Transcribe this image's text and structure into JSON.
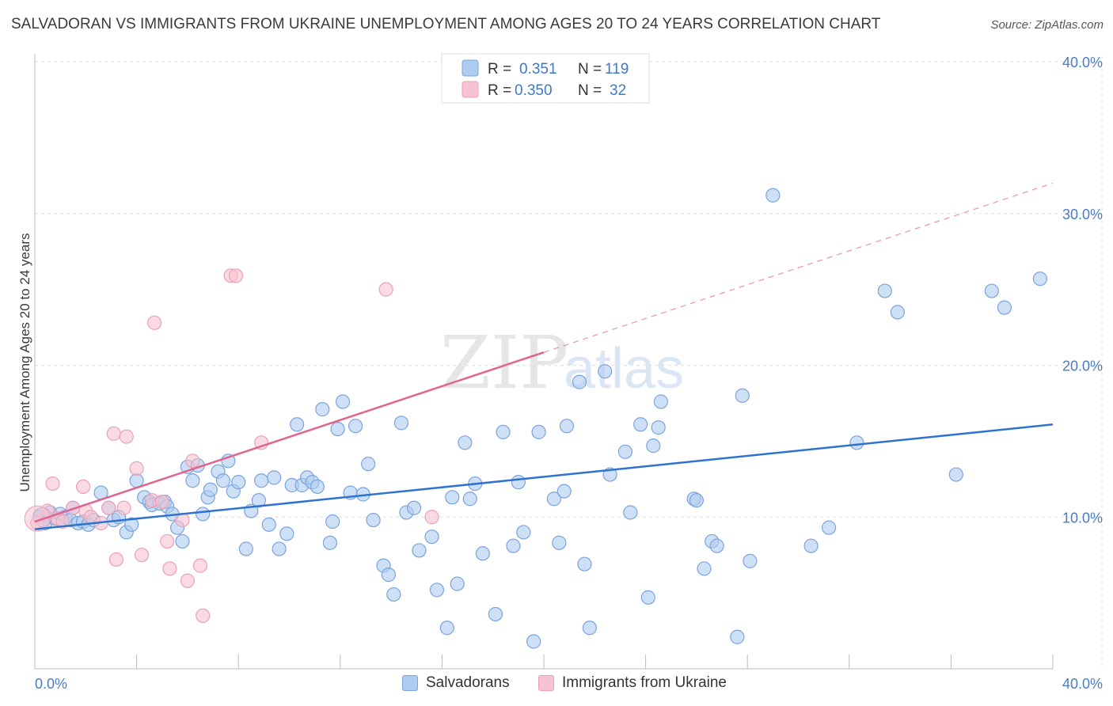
{
  "title": "SALVADORAN VS IMMIGRANTS FROM UKRAINE UNEMPLOYMENT AMONG AGES 20 TO 24 YEARS CORRELATION CHART",
  "source": "Source: ZipAtlas.com",
  "watermark": {
    "zip": "ZIP",
    "atlas": "atlas"
  },
  "legend": {
    "rows": [
      {
        "r_label": "R =",
        "r_value": "0.351",
        "n_label": "N =",
        "n_value": "119"
      },
      {
        "r_label": "R =",
        "r_value": "0.350",
        "n_label": "N =",
        "n_value": "32"
      }
    ]
  },
  "bottom_legend": [
    "Salvadorans",
    "Immigrants from Ukraine"
  ],
  "colors": {
    "blue_fill": "#aecbf0",
    "blue_stroke": "#7ba4dc",
    "blue_line": "#2f73d0",
    "pink_fill": "#f7c3d2",
    "pink_stroke": "#eba0b6",
    "pink_line": "#e0648f",
    "grid": "#e2e2e2",
    "axis_text": "#4a7cc6"
  },
  "chart_data": {
    "type": "scatter",
    "title": "SALVADORAN VS IMMIGRANTS FROM UKRAINE UNEMPLOYMENT AMONG AGES 20 TO 24 YEARS CORRELATION CHART",
    "xlabel": "",
    "ylabel": "Unemployment Among Ages 20 to 24 years",
    "xlim": [
      0,
      40
    ],
    "ylim": [
      0,
      40
    ],
    "x_tick_labels": [
      "0.0%",
      "40.0%"
    ],
    "y_ticks": [
      10,
      20,
      30,
      40
    ],
    "y_tick_labels": [
      "10.0%",
      "20.0%",
      "30.0%",
      "40.0%"
    ],
    "grid": true,
    "series": [
      {
        "name": "Salvadorans",
        "r": 0.351,
        "n": 119,
        "trend": {
          "x0": 0,
          "y0": 9.2,
          "x1": 40,
          "y1": 16.1
        },
        "points": [
          [
            0.2,
            10.0
          ],
          [
            0.4,
            9.6
          ],
          [
            0.6,
            10.3
          ],
          [
            0.8,
            9.9
          ],
          [
            1.0,
            10.2
          ],
          [
            1.2,
            10.0
          ],
          [
            1.4,
            9.8
          ],
          [
            1.5,
            10.6
          ],
          [
            1.7,
            9.6
          ],
          [
            1.9,
            9.7
          ],
          [
            2.1,
            9.5
          ],
          [
            2.3,
            9.8
          ],
          [
            2.6,
            11.6
          ],
          [
            2.9,
            10.6
          ],
          [
            3.1,
            9.8
          ],
          [
            3.3,
            10.0
          ],
          [
            3.6,
            9.0
          ],
          [
            3.8,
            9.5
          ],
          [
            4.0,
            12.4
          ],
          [
            4.3,
            11.3
          ],
          [
            4.5,
            11.0
          ],
          [
            4.6,
            10.8
          ],
          [
            4.9,
            10.9
          ],
          [
            5.1,
            11.0
          ],
          [
            5.2,
            10.7
          ],
          [
            5.4,
            10.2
          ],
          [
            5.6,
            9.3
          ],
          [
            5.8,
            8.4
          ],
          [
            6.0,
            13.3
          ],
          [
            6.2,
            12.4
          ],
          [
            6.4,
            13.4
          ],
          [
            6.6,
            10.2
          ],
          [
            6.8,
            11.3
          ],
          [
            6.9,
            11.8
          ],
          [
            7.2,
            13.0
          ],
          [
            7.4,
            12.4
          ],
          [
            7.6,
            13.7
          ],
          [
            7.8,
            11.7
          ],
          [
            8.0,
            12.3
          ],
          [
            8.3,
            7.9
          ],
          [
            8.5,
            10.4
          ],
          [
            8.8,
            11.1
          ],
          [
            8.9,
            12.4
          ],
          [
            9.2,
            9.5
          ],
          [
            9.4,
            12.6
          ],
          [
            9.6,
            7.9
          ],
          [
            9.9,
            8.9
          ],
          [
            10.1,
            12.1
          ],
          [
            10.3,
            16.1
          ],
          [
            10.5,
            12.1
          ],
          [
            10.7,
            12.6
          ],
          [
            10.9,
            12.3
          ],
          [
            11.1,
            12.0
          ],
          [
            11.3,
            17.1
          ],
          [
            11.6,
            8.3
          ],
          [
            11.7,
            9.7
          ],
          [
            11.9,
            15.8
          ],
          [
            12.1,
            17.6
          ],
          [
            12.4,
            11.6
          ],
          [
            12.6,
            16.0
          ],
          [
            12.9,
            11.5
          ],
          [
            13.1,
            13.5
          ],
          [
            13.3,
            9.8
          ],
          [
            13.7,
            6.8
          ],
          [
            13.9,
            6.2
          ],
          [
            14.1,
            4.9
          ],
          [
            14.4,
            16.2
          ],
          [
            14.6,
            10.3
          ],
          [
            14.9,
            10.6
          ],
          [
            15.1,
            7.8
          ],
          [
            15.6,
            8.7
          ],
          [
            15.8,
            5.2
          ],
          [
            16.2,
            2.7
          ],
          [
            16.4,
            11.3
          ],
          [
            16.6,
            5.6
          ],
          [
            16.9,
            14.9
          ],
          [
            17.1,
            11.2
          ],
          [
            17.3,
            12.2
          ],
          [
            17.6,
            7.6
          ],
          [
            18.1,
            3.6
          ],
          [
            18.4,
            15.6
          ],
          [
            18.8,
            8.1
          ],
          [
            19.0,
            12.3
          ],
          [
            19.2,
            9.0
          ],
          [
            19.6,
            1.8
          ],
          [
            19.8,
            15.6
          ],
          [
            20.4,
            11.2
          ],
          [
            20.6,
            8.3
          ],
          [
            20.8,
            11.7
          ],
          [
            20.9,
            16.0
          ],
          [
            21.4,
            18.9
          ],
          [
            21.6,
            6.9
          ],
          [
            21.8,
            2.7
          ],
          [
            22.4,
            19.6
          ],
          [
            22.6,
            12.8
          ],
          [
            23.2,
            14.3
          ],
          [
            23.4,
            10.3
          ],
          [
            23.8,
            16.1
          ],
          [
            24.1,
            4.7
          ],
          [
            24.3,
            14.7
          ],
          [
            24.5,
            15.9
          ],
          [
            24.6,
            17.6
          ],
          [
            25.9,
            11.2
          ],
          [
            26.0,
            11.1
          ],
          [
            26.3,
            6.6
          ],
          [
            26.6,
            8.4
          ],
          [
            26.8,
            8.1
          ],
          [
            27.6,
            2.1
          ],
          [
            27.8,
            18.0
          ],
          [
            28.1,
            7.1
          ],
          [
            29.0,
            31.2
          ],
          [
            30.5,
            8.1
          ],
          [
            31.2,
            9.3
          ],
          [
            32.3,
            14.9
          ],
          [
            33.4,
            24.9
          ],
          [
            33.9,
            23.5
          ],
          [
            36.2,
            12.8
          ],
          [
            37.6,
            24.9
          ],
          [
            38.1,
            23.8
          ],
          [
            39.5,
            25.7
          ]
        ]
      },
      {
        "name": "Immigrants from Ukraine",
        "r": 0.35,
        "n": 32,
        "trend": {
          "x0": 0,
          "y0": 9.7,
          "x1": 40,
          "y1": 32.0,
          "solid_until_x": 20
        },
        "points": [
          [
            0.1,
            9.6
          ],
          [
            0.5,
            10.4
          ],
          [
            0.7,
            12.2
          ],
          [
            0.9,
            9.9
          ],
          [
            1.1,
            9.7
          ],
          [
            1.5,
            10.6
          ],
          [
            1.9,
            12.0
          ],
          [
            2.0,
            10.4
          ],
          [
            2.2,
            10.0
          ],
          [
            2.6,
            9.6
          ],
          [
            2.9,
            10.6
          ],
          [
            3.1,
            15.5
          ],
          [
            3.2,
            7.2
          ],
          [
            3.5,
            10.6
          ],
          [
            3.6,
            15.3
          ],
          [
            4.0,
            13.2
          ],
          [
            4.2,
            7.5
          ],
          [
            4.6,
            11.1
          ],
          [
            4.7,
            22.8
          ],
          [
            5.0,
            11.0
          ],
          [
            5.2,
            8.4
          ],
          [
            5.3,
            6.6
          ],
          [
            5.8,
            9.8
          ],
          [
            6.0,
            5.8
          ],
          [
            6.2,
            13.7
          ],
          [
            6.5,
            6.8
          ],
          [
            6.6,
            3.5
          ],
          [
            7.7,
            25.9
          ],
          [
            7.9,
            25.9
          ],
          [
            8.9,
            14.9
          ],
          [
            13.8,
            25.0
          ],
          [
            15.6,
            10.0
          ]
        ]
      }
    ]
  }
}
